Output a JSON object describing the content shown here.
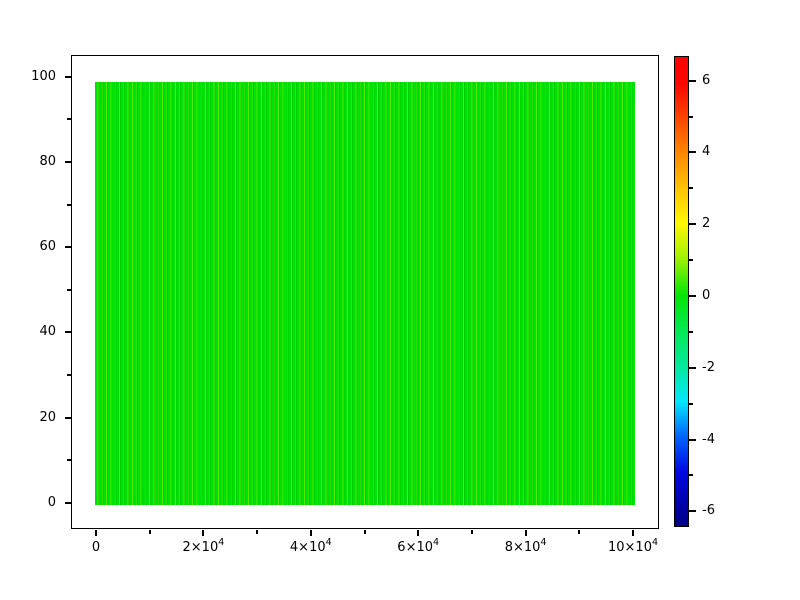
{
  "figure": {
    "background_color": "#ffffff",
    "frame_color": "#000000",
    "label_color": "#000000",
    "title": "",
    "xlabel": "",
    "ylabel": ""
  },
  "chart_data": {
    "type": "heatmap",
    "title": "",
    "xlabel": "",
    "ylabel": "",
    "x_axis": {
      "range": [
        0,
        100000
      ],
      "major_ticks": [
        {
          "value": 0,
          "text": "0",
          "sup": ""
        },
        {
          "value": 20000,
          "text": "2×10",
          "sup": "4"
        },
        {
          "value": 40000,
          "text": "4×10",
          "sup": "4"
        },
        {
          "value": 60000,
          "text": "6×10",
          "sup": "4"
        },
        {
          "value": 80000,
          "text": "8×10",
          "sup": "4"
        },
        {
          "value": 100000,
          "text": "10×10",
          "sup": "4"
        }
      ],
      "minor_ticks": [
        10000,
        30000,
        50000,
        70000,
        90000
      ]
    },
    "y_axis": {
      "range": [
        0,
        100
      ],
      "major_ticks": [
        {
          "value": 0,
          "text": "0"
        },
        {
          "value": 20,
          "text": "20"
        },
        {
          "value": 40,
          "text": "40"
        },
        {
          "value": 60,
          "text": "60"
        },
        {
          "value": 80,
          "text": "80"
        },
        {
          "value": 100,
          "text": "100"
        }
      ],
      "minor_ticks": [
        10,
        30,
        50,
        70,
        90
      ]
    },
    "colorbar": {
      "range": [
        -6.7,
        6.7
      ],
      "colormap": "jet (navy-blue-cyan-green-yellow-orange-red, low to high)",
      "major_ticks": [
        {
          "value": 6,
          "text": "6"
        },
        {
          "value": 4,
          "text": "4"
        },
        {
          "value": 2,
          "text": "2"
        },
        {
          "value": 0,
          "text": "0"
        },
        {
          "value": -2,
          "text": "-2"
        },
        {
          "value": -4,
          "text": "-4"
        },
        {
          "value": -6,
          "text": "-6"
        }
      ],
      "minor_ticks": [
        5,
        3,
        1,
        -1,
        -3,
        -5
      ],
      "gradient_stops": [
        {
          "pos": "0%",
          "color": "#ff0000"
        },
        {
          "pos": "6%",
          "color": "#fb0900"
        },
        {
          "pos": "13%",
          "color": "#ff4600"
        },
        {
          "pos": "20.5%",
          "color": "#ff8800"
        },
        {
          "pos": "28%",
          "color": "#ffc300"
        },
        {
          "pos": "35.5%",
          "color": "#fff800"
        },
        {
          "pos": "43%",
          "color": "#9df100"
        },
        {
          "pos": "51%",
          "color": "#00e606"
        },
        {
          "pos": "58.5%",
          "color": "#00e955"
        },
        {
          "pos": "66%",
          "color": "#00e99c"
        },
        {
          "pos": "73.5%",
          "color": "#00e6ff"
        },
        {
          "pos": "81%",
          "color": "#0063ff"
        },
        {
          "pos": "88.5%",
          "color": "#0008e0"
        },
        {
          "pos": "96.5%",
          "color": "#0000a0"
        },
        {
          "pos": "100%",
          "color": "#000085"
        }
      ]
    },
    "data_summary": {
      "description": "Uniform field with values near 0 (rendered bright green) over the full domain, with a fine vertical stripe texture of slightly lighter/darker green columns.",
      "approx_value": 0,
      "x_extent": [
        0,
        100000
      ],
      "y_extent": [
        0,
        99
      ]
    },
    "field_colors": {
      "base_green": "#00e206",
      "stripe_light_green": "#55ec00",
      "stripe_dark_green": "#00cd00"
    },
    "legend_position": "right-colorbar",
    "grid": false
  }
}
